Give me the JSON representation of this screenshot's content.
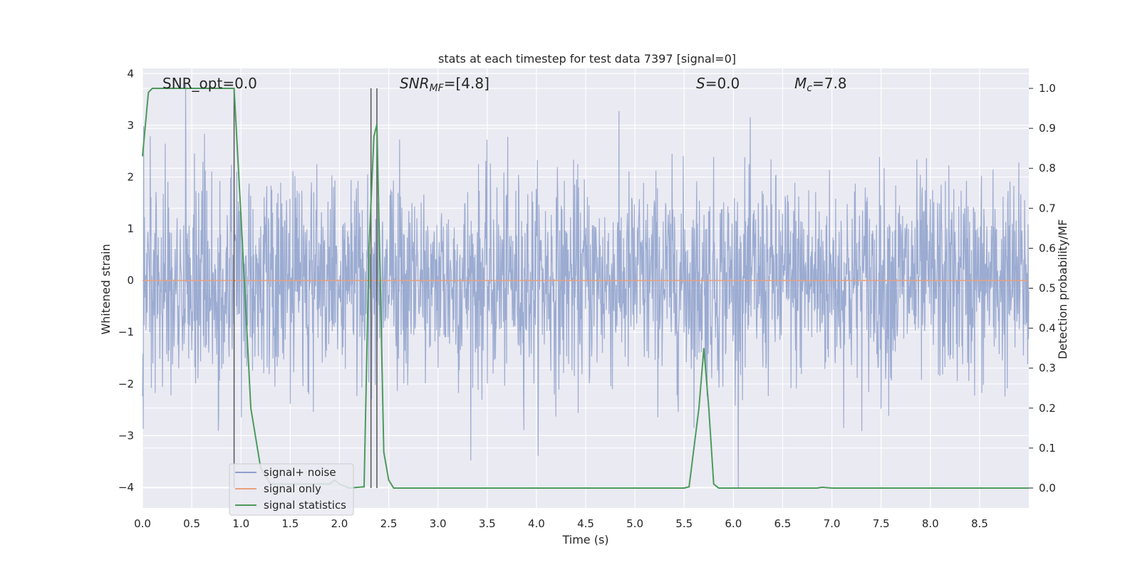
{
  "chart_data": {
    "type": "line",
    "title": "stats at each timestep for test data 7397 [signal=0]",
    "xlabel": "Time (s)",
    "ylabel": "Whitened strain",
    "y2label": "Detection probability/MF",
    "xlim": [
      0.0,
      9.0
    ],
    "ylim": [
      -4.4,
      4.1
    ],
    "y2lim": [
      -0.05,
      1.05
    ],
    "xticks": [
      "0.0",
      "0.5",
      "1.0",
      "1.5",
      "2.0",
      "2.5",
      "3.0",
      "3.5",
      "4.0",
      "4.5",
      "5.0",
      "5.5",
      "6.0",
      "6.5",
      "7.0",
      "7.5",
      "8.0",
      "8.5"
    ],
    "yticks": [
      "4",
      "3",
      "2",
      "1",
      "0",
      "−1",
      "−2",
      "−3",
      "−4"
    ],
    "y2ticks": [
      "1.0",
      "0.9",
      "0.8",
      "0.7",
      "0.6",
      "0.5",
      "0.4",
      "0.3",
      "0.2",
      "0.1",
      "0.0"
    ],
    "grid": true,
    "legend_position": "lower-left",
    "annotations": {
      "snr_opt": "SNR_opt=0.0",
      "snr_mf_main": "SNR",
      "snr_mf_sub": "MF",
      "snr_mf_value": "=[4.8]",
      "s_main": "S",
      "s_value": "=0.0",
      "mc_main": "M",
      "mc_sub": "c",
      "mc_value": "=7.8"
    },
    "vlines_x": [
      0.93,
      2.32,
      2.38
    ],
    "series": [
      {
        "name": "signal+ noise",
        "color": "#8da0cb",
        "axis": "left",
        "noise_std": 1.0,
        "x_range": [
          0.0,
          9.0
        ],
        "n_samples": 2304
      },
      {
        "name": "signal only",
        "color": "#e8a07e",
        "axis": "left",
        "x": [
          0.0,
          9.0
        ],
        "y": [
          0.0,
          0.0
        ]
      },
      {
        "name": "signal statistics",
        "color": "#4c9a5c",
        "axis": "right",
        "x": [
          0.0,
          0.06,
          0.1,
          0.9,
          0.93,
          1.0,
          1.1,
          1.2,
          1.3,
          1.9,
          1.95,
          2.0,
          2.1,
          2.25,
          2.3,
          2.35,
          2.38,
          2.42,
          2.45,
          2.5,
          2.55,
          3.0,
          4.0,
          5.0,
          5.5,
          5.55,
          5.65,
          5.7,
          5.75,
          5.8,
          5.85,
          6.5,
          6.85,
          6.9,
          7.0,
          8.0,
          9.0
        ],
        "y": [
          0.83,
          0.99,
          1.0,
          1.0,
          1.0,
          0.68,
          0.2,
          0.05,
          0.01,
          0.01,
          0.02,
          0.01,
          0.0,
          0.003,
          0.6,
          0.88,
          0.91,
          0.45,
          0.09,
          0.02,
          0.0,
          0.0,
          0.0,
          0.0,
          0.0,
          0.003,
          0.2,
          0.35,
          0.2,
          0.01,
          0.0,
          0.0,
          0.0,
          0.002,
          0.0,
          0.0,
          0.0
        ]
      }
    ]
  }
}
